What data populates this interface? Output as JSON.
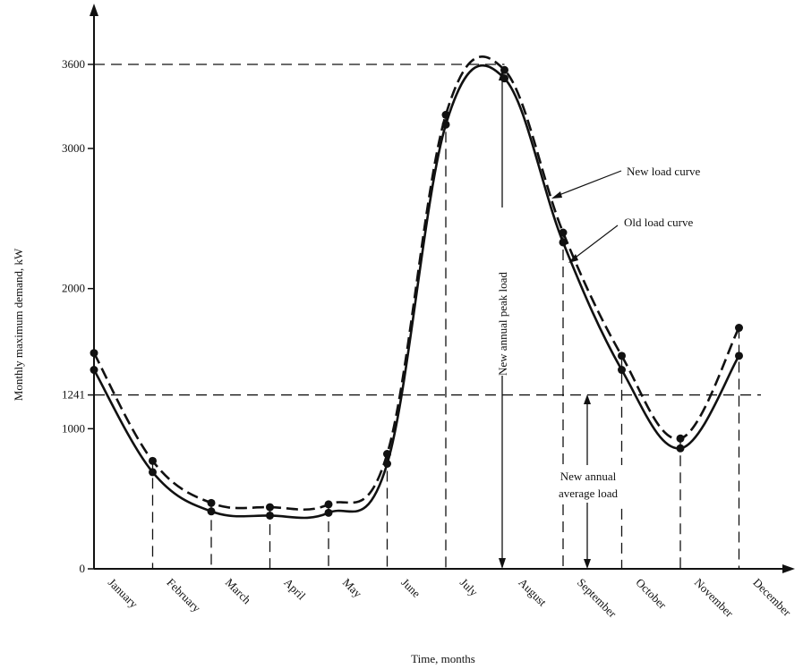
{
  "chart_data": {
    "type": "line",
    "xlabel": "Time, months",
    "ylabel": "Monthly maximum demand, kW",
    "ylim": [
      0,
      3600
    ],
    "yticks": [
      0,
      1000,
      1241,
      2000,
      3000,
      3600
    ],
    "categories": [
      "January",
      "February",
      "March",
      "April",
      "May",
      "June",
      "July",
      "August",
      "September",
      "October",
      "November",
      "December"
    ],
    "series": [
      {
        "name": "New load curve",
        "style": "dashed",
        "values": [
          1540,
          770,
          470,
          440,
          460,
          820,
          3240,
          3560,
          2400,
          1520,
          930,
          1720
        ]
      },
      {
        "name": "Old load curve",
        "style": "solid",
        "values": [
          1420,
          690,
          410,
          380,
          400,
          750,
          3170,
          3500,
          2330,
          1420,
          860,
          1520
        ]
      }
    ],
    "reference_lines": [
      {
        "value": 3600,
        "axis": "y"
      },
      {
        "value": 1241,
        "axis": "y"
      }
    ],
    "annotations": {
      "new_load": "New load curve",
      "old_load": "Old load curve",
      "peak_load": "New annual peak load",
      "average_load_line1": "New annual",
      "average_load_line2": "average load"
    },
    "legend": "annotated on curves",
    "grid": false,
    "color": "#111111"
  }
}
